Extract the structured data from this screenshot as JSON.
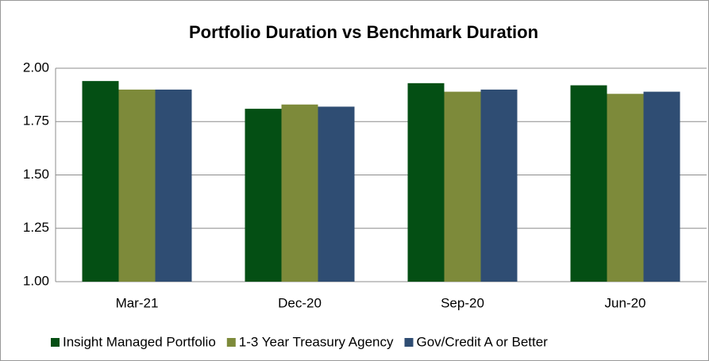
{
  "chart_data": {
    "type": "bar",
    "title": "Portfolio Duration vs Benchmark Duration",
    "categories": [
      "Mar-21",
      "Dec-20",
      "Sep-20",
      "Jun-20"
    ],
    "series": [
      {
        "name": "Insight Managed Portfolio",
        "color": "#044f14",
        "values": [
          1.94,
          1.81,
          1.93,
          1.92
        ]
      },
      {
        "name": "1-3 Year Treasury Agency",
        "color": "#7d8a3a",
        "values": [
          1.9,
          1.83,
          1.89,
          1.88
        ]
      },
      {
        "name": "Gov/Credit A or Better",
        "color": "#2f4d73",
        "values": [
          1.9,
          1.82,
          1.9,
          1.89
        ]
      }
    ],
    "ylim": [
      1,
      2
    ],
    "yticks": [
      {
        "value": 1,
        "label": "1.00"
      },
      {
        "value": 1.25,
        "label": "1.25"
      },
      {
        "value": 1.5,
        "label": "1.50"
      },
      {
        "value": 1.75,
        "label": "1.75"
      },
      {
        "value": 2,
        "label": "2.00"
      }
    ],
    "grid": true,
    "legend": "bottom"
  }
}
